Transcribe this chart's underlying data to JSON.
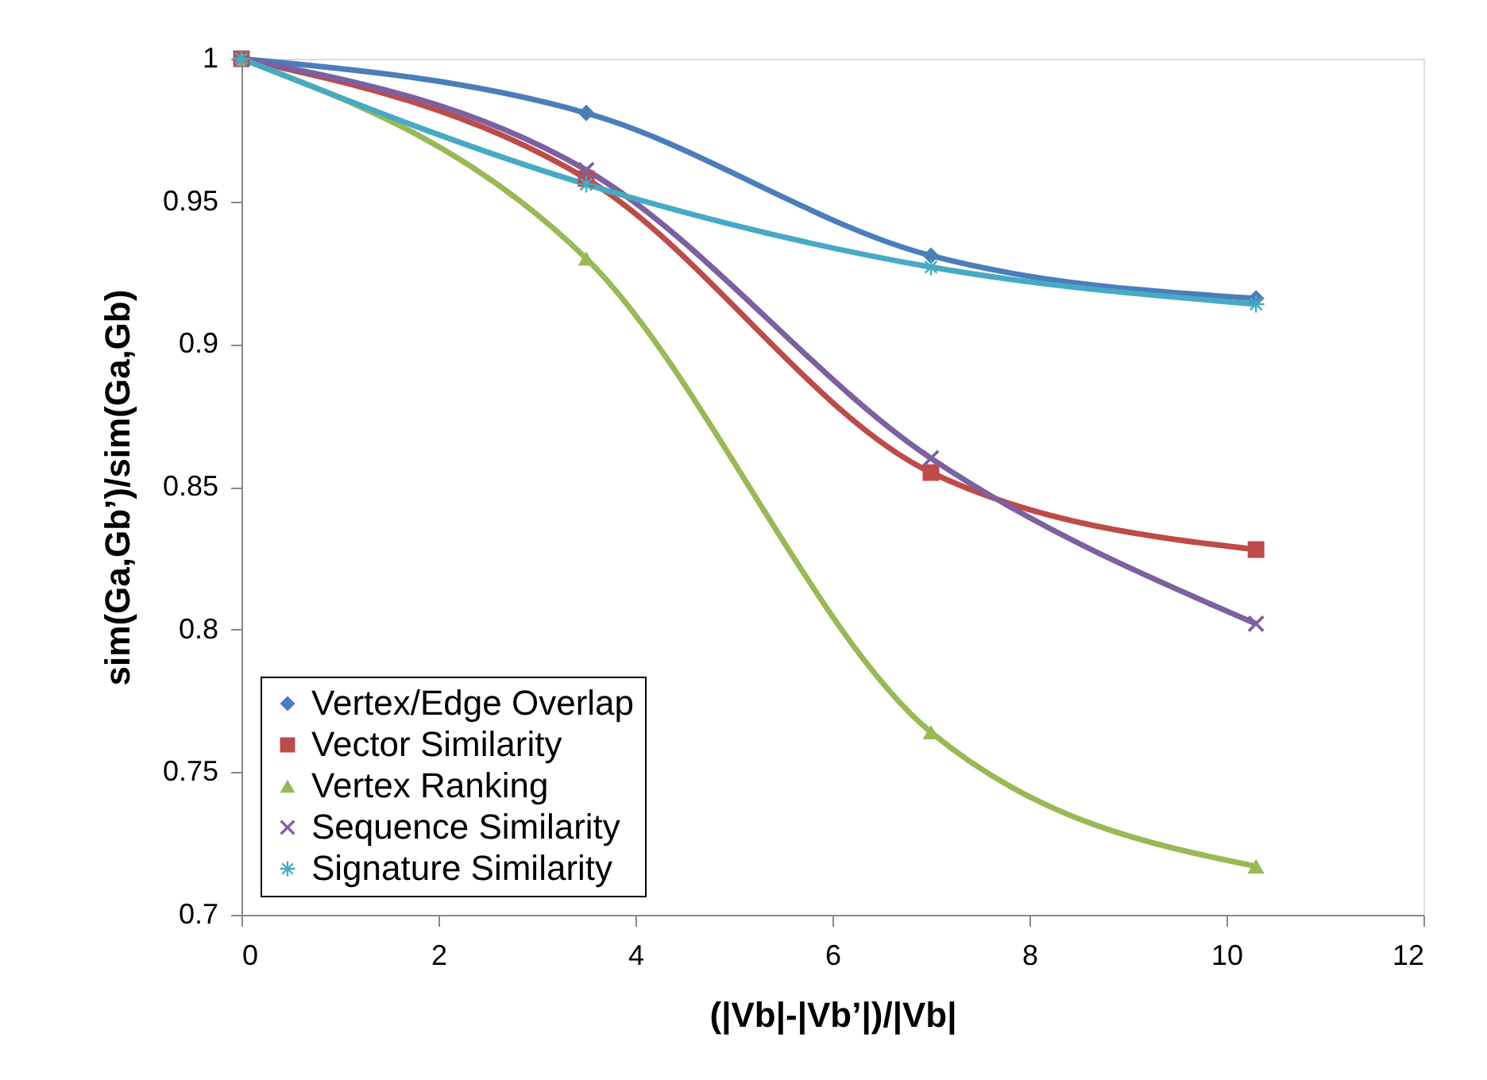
{
  "chart_data": {
    "type": "line",
    "xlabel": "(|Vb|-|Vb’|)/|Vb|",
    "ylabel": "sim(Ga,Gb’)/sim(Ga,Gb)",
    "x": [
      0,
      3.5,
      7,
      10.3
    ],
    "series": [
      {
        "name": "Vertex/Edge Overlap",
        "color": "#4a7ebb",
        "marker": "diamond",
        "values": [
          1.0,
          0.981,
          0.931,
          0.916
        ]
      },
      {
        "name": "Vector Similarity",
        "color": "#be4b48",
        "marker": "square",
        "values": [
          1.0,
          0.958,
          0.855,
          0.828
        ]
      },
      {
        "name": "Vertex Ranking",
        "color": "#98b954",
        "marker": "triangle",
        "values": [
          1.0,
          0.93,
          0.764,
          0.717
        ]
      },
      {
        "name": "Sequence Similarity",
        "color": "#7d60a0",
        "marker": "cross",
        "values": [
          1.0,
          0.961,
          0.86,
          0.802
        ]
      },
      {
        "name": "Signature Similarity",
        "color": "#46aac5",
        "marker": "star",
        "values": [
          1.0,
          0.956,
          0.927,
          0.914
        ]
      }
    ],
    "xlim": [
      0,
      12
    ],
    "xticks": [
      0,
      2,
      4,
      6,
      8,
      10,
      12
    ],
    "ylim": [
      0.7,
      1.0
    ],
    "yticks": [
      0.7,
      0.75,
      0.8,
      0.85,
      0.9,
      0.95,
      1
    ],
    "grid": false,
    "legend": "bottom left",
    "line_style": "solid"
  }
}
